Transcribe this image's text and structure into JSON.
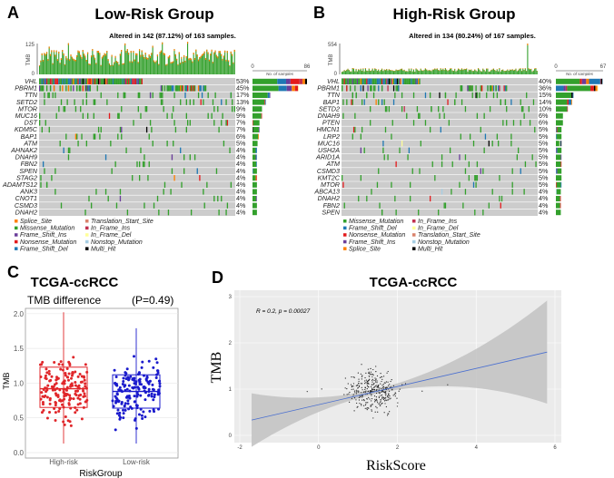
{
  "chart_data": [
    {
      "type": "heatmap",
      "panel_label": "A",
      "title": "Low-Risk Group",
      "subtitle": "Altered in 142 (87.12%) of 163 samples.",
      "tmb_axis": {
        "label": "TMB",
        "ticks": [
          "0",
          "125"
        ]
      },
      "samples_axis": {
        "label": "No. of samples",
        "ticks": [
          "0",
          "86"
        ]
      },
      "genes": [
        "VHL",
        "PBRM1",
        "TTN",
        "SETD2",
        "MTOR",
        "MUC16",
        "DST",
        "KDM5C",
        "BAP1",
        "ATM",
        "AHNAK2",
        "DNAH9",
        "FBN2",
        "SPEN",
        "STAG2",
        "ADAMTS12",
        "ANK3",
        "CNOT1",
        "CSMD3",
        "DNAH2"
      ],
      "percent": [
        "53%",
        "45%",
        "17%",
        "13%",
        "9%",
        "9%",
        "7%",
        "7%",
        "6%",
        "5%",
        "4%",
        "4%",
        "4%",
        "4%",
        "4%",
        "4%",
        "4%",
        "4%",
        "4%",
        "4%"
      ],
      "legend": [
        "Splice_Site",
        "Translation_Start_Site",
        "Missense_Mutation",
        "In_Frame_Ins",
        "Frame_Shift_Ins",
        "In_Frame_Del",
        "Nonsense_Mutation",
        "Nonstop_Mutation",
        "Frame_Shift_Del",
        "Multi_Hit"
      ]
    },
    {
      "type": "heatmap",
      "panel_label": "B",
      "title": "High-Risk Group",
      "subtitle": "Altered in 134 (80.24%) of 167 samples.",
      "tmb_axis": {
        "label": "TMB",
        "ticks": [
          "0",
          "554"
        ]
      },
      "samples_axis": {
        "label": "No. of samples",
        "ticks": [
          "0",
          "67"
        ]
      },
      "genes": [
        "VHL",
        "PBRM1",
        "TTN",
        "BAP1",
        "SETD2",
        "DNAH9",
        "PTEN",
        "HMCN1",
        "LRP2",
        "MUC16",
        "USH2A",
        "ARID1A",
        "ATM",
        "CSMD3",
        "KMT2C",
        "MTOR",
        "ABCA13",
        "DNAH2",
        "FBN2",
        "SPEN"
      ],
      "percent": [
        "40%",
        "36%",
        "15%",
        "14%",
        "10%",
        "6%",
        "6%",
        "5%",
        "5%",
        "5%",
        "5%",
        "5%",
        "5%",
        "5%",
        "5%",
        "5%",
        "4%",
        "4%",
        "4%",
        "4%"
      ],
      "legend": [
        "Missense_Mutation",
        "In_Frame_Ins",
        "Frame_Shift_Del",
        "In_Frame_Del",
        "Nonsense_Mutation",
        "Translation_Start_Site",
        "Frame_Shift_Ins",
        "Nonstop_Mutation",
        "Splice_Site",
        "Multi_Hit"
      ]
    },
    {
      "type": "box",
      "panel_label": "C",
      "title": "TCGA-ccRCC",
      "subtitle": "TMB difference",
      "annotation": "(P=0.49)",
      "xlabel": "RiskGroup",
      "ylabel": "TMB",
      "ylim": [
        0,
        2.05
      ],
      "yticks": [
        "0.0",
        "0.5",
        "1.0",
        "1.5",
        "2.0"
      ],
      "grid": true,
      "categories": [
        "High-risk",
        "Low-risk"
      ],
      "colors": [
        "#e0262a",
        "#1a1acc"
      ],
      "boxes": [
        {
          "min": 0.13,
          "q1": 0.65,
          "median": 0.92,
          "q3": 1.23,
          "max": 2.02
        },
        {
          "min": 0.13,
          "q1": 0.64,
          "median": 0.88,
          "q3": 1.12,
          "max": 1.79
        }
      ]
    },
    {
      "type": "scatter",
      "panel_label": "D",
      "title": "TCGA-ccRCC",
      "xlabel": "RiskScore",
      "ylabel": "TMB",
      "annotation": "R = 0.2, p = 0.00027",
      "xlim": [
        -2,
        6
      ],
      "ylim": [
        0,
        3
      ],
      "xticks": [
        "-2",
        "0",
        "2",
        "4",
        "6"
      ],
      "yticks": [
        "0",
        "1",
        "2",
        "3"
      ],
      "grid": true,
      "regression": {
        "x": [
          -1.7,
          5.8
        ],
        "y": [
          0.33,
          1.8
        ]
      },
      "line_color": "#4a6fd0"
    }
  ],
  "mutation_colors": {
    "Missense_Mutation": "#33a02c",
    "Frame_Shift_Del": "#1f78b4",
    "Nonsense_Mutation": "#e31a1c",
    "Frame_Shift_Ins": "#6a3d9a",
    "Splice_Site": "#ff7f00",
    "In_Frame_Ins": "#c2304f",
    "In_Frame_Del": "#ffff99",
    "Translation_Start_Site": "#d9826b",
    "Nonstop_Mutation": "#a6cee3",
    "Multi_Hit": "#000000"
  }
}
